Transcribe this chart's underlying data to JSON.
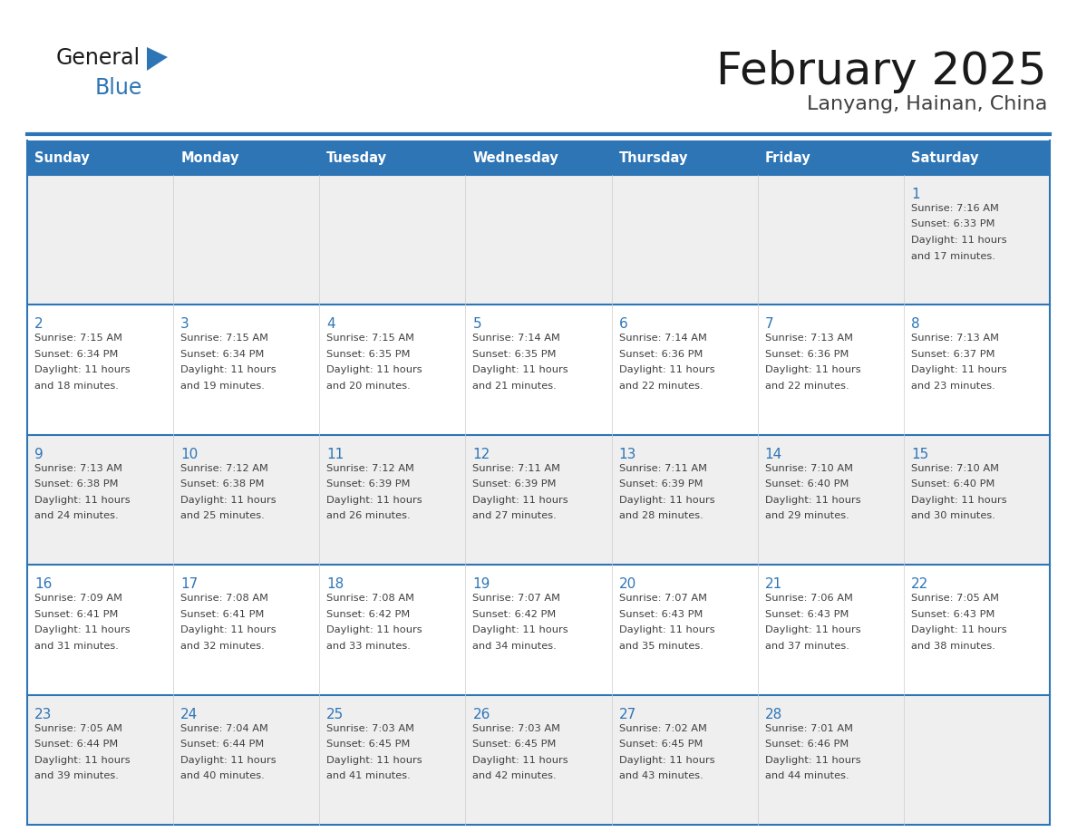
{
  "title": "February 2025",
  "subtitle": "Lanyang, Hainan, China",
  "header_bg_color": "#2E75B6",
  "header_text_color": "#FFFFFF",
  "cell_bg_color_0": "#EFEFEF",
  "cell_bg_color_1": "#FFFFFF",
  "separator_color": "#2E75B6",
  "days_of_week": [
    "Sunday",
    "Monday",
    "Tuesday",
    "Wednesday",
    "Thursday",
    "Friday",
    "Saturday"
  ],
  "title_color": "#1A1A1A",
  "subtitle_color": "#404040",
  "day_number_color": "#2E75B6",
  "cell_text_color": "#404040",
  "logo_general_color": "#1A1A1A",
  "logo_blue_color": "#2E75B6",
  "logo_triangle_color": "#2E75B6",
  "calendar": [
    [
      null,
      null,
      null,
      null,
      null,
      null,
      {
        "day": 1,
        "sunrise": "7:16 AM",
        "sunset": "6:33 PM",
        "daylight_line1": "Daylight: 11 hours",
        "daylight_line2": "and 17 minutes."
      }
    ],
    [
      {
        "day": 2,
        "sunrise": "7:15 AM",
        "sunset": "6:34 PM",
        "daylight_line1": "Daylight: 11 hours",
        "daylight_line2": "and 18 minutes."
      },
      {
        "day": 3,
        "sunrise": "7:15 AM",
        "sunset": "6:34 PM",
        "daylight_line1": "Daylight: 11 hours",
        "daylight_line2": "and 19 minutes."
      },
      {
        "day": 4,
        "sunrise": "7:15 AM",
        "sunset": "6:35 PM",
        "daylight_line1": "Daylight: 11 hours",
        "daylight_line2": "and 20 minutes."
      },
      {
        "day": 5,
        "sunrise": "7:14 AM",
        "sunset": "6:35 PM",
        "daylight_line1": "Daylight: 11 hours",
        "daylight_line2": "and 21 minutes."
      },
      {
        "day": 6,
        "sunrise": "7:14 AM",
        "sunset": "6:36 PM",
        "daylight_line1": "Daylight: 11 hours",
        "daylight_line2": "and 22 minutes."
      },
      {
        "day": 7,
        "sunrise": "7:13 AM",
        "sunset": "6:36 PM",
        "daylight_line1": "Daylight: 11 hours",
        "daylight_line2": "and 22 minutes."
      },
      {
        "day": 8,
        "sunrise": "7:13 AM",
        "sunset": "6:37 PM",
        "daylight_line1": "Daylight: 11 hours",
        "daylight_line2": "and 23 minutes."
      }
    ],
    [
      {
        "day": 9,
        "sunrise": "7:13 AM",
        "sunset": "6:38 PM",
        "daylight_line1": "Daylight: 11 hours",
        "daylight_line2": "and 24 minutes."
      },
      {
        "day": 10,
        "sunrise": "7:12 AM",
        "sunset": "6:38 PM",
        "daylight_line1": "Daylight: 11 hours",
        "daylight_line2": "and 25 minutes."
      },
      {
        "day": 11,
        "sunrise": "7:12 AM",
        "sunset": "6:39 PM",
        "daylight_line1": "Daylight: 11 hours",
        "daylight_line2": "and 26 minutes."
      },
      {
        "day": 12,
        "sunrise": "7:11 AM",
        "sunset": "6:39 PM",
        "daylight_line1": "Daylight: 11 hours",
        "daylight_line2": "and 27 minutes."
      },
      {
        "day": 13,
        "sunrise": "7:11 AM",
        "sunset": "6:39 PM",
        "daylight_line1": "Daylight: 11 hours",
        "daylight_line2": "and 28 minutes."
      },
      {
        "day": 14,
        "sunrise": "7:10 AM",
        "sunset": "6:40 PM",
        "daylight_line1": "Daylight: 11 hours",
        "daylight_line2": "and 29 minutes."
      },
      {
        "day": 15,
        "sunrise": "7:10 AM",
        "sunset": "6:40 PM",
        "daylight_line1": "Daylight: 11 hours",
        "daylight_line2": "and 30 minutes."
      }
    ],
    [
      {
        "day": 16,
        "sunrise": "7:09 AM",
        "sunset": "6:41 PM",
        "daylight_line1": "Daylight: 11 hours",
        "daylight_line2": "and 31 minutes."
      },
      {
        "day": 17,
        "sunrise": "7:08 AM",
        "sunset": "6:41 PM",
        "daylight_line1": "Daylight: 11 hours",
        "daylight_line2": "and 32 minutes."
      },
      {
        "day": 18,
        "sunrise": "7:08 AM",
        "sunset": "6:42 PM",
        "daylight_line1": "Daylight: 11 hours",
        "daylight_line2": "and 33 minutes."
      },
      {
        "day": 19,
        "sunrise": "7:07 AM",
        "sunset": "6:42 PM",
        "daylight_line1": "Daylight: 11 hours",
        "daylight_line2": "and 34 minutes."
      },
      {
        "day": 20,
        "sunrise": "7:07 AM",
        "sunset": "6:43 PM",
        "daylight_line1": "Daylight: 11 hours",
        "daylight_line2": "and 35 minutes."
      },
      {
        "day": 21,
        "sunrise": "7:06 AM",
        "sunset": "6:43 PM",
        "daylight_line1": "Daylight: 11 hours",
        "daylight_line2": "and 37 minutes."
      },
      {
        "day": 22,
        "sunrise": "7:05 AM",
        "sunset": "6:43 PM",
        "daylight_line1": "Daylight: 11 hours",
        "daylight_line2": "and 38 minutes."
      }
    ],
    [
      {
        "day": 23,
        "sunrise": "7:05 AM",
        "sunset": "6:44 PM",
        "daylight_line1": "Daylight: 11 hours",
        "daylight_line2": "and 39 minutes."
      },
      {
        "day": 24,
        "sunrise": "7:04 AM",
        "sunset": "6:44 PM",
        "daylight_line1": "Daylight: 11 hours",
        "daylight_line2": "and 40 minutes."
      },
      {
        "day": 25,
        "sunrise": "7:03 AM",
        "sunset": "6:45 PM",
        "daylight_line1": "Daylight: 11 hours",
        "daylight_line2": "and 41 minutes."
      },
      {
        "day": 26,
        "sunrise": "7:03 AM",
        "sunset": "6:45 PM",
        "daylight_line1": "Daylight: 11 hours",
        "daylight_line2": "and 42 minutes."
      },
      {
        "day": 27,
        "sunrise": "7:02 AM",
        "sunset": "6:45 PM",
        "daylight_line1": "Daylight: 11 hours",
        "daylight_line2": "and 43 minutes."
      },
      {
        "day": 28,
        "sunrise": "7:01 AM",
        "sunset": "6:46 PM",
        "daylight_line1": "Daylight: 11 hours",
        "daylight_line2": "and 44 minutes."
      },
      null
    ]
  ]
}
